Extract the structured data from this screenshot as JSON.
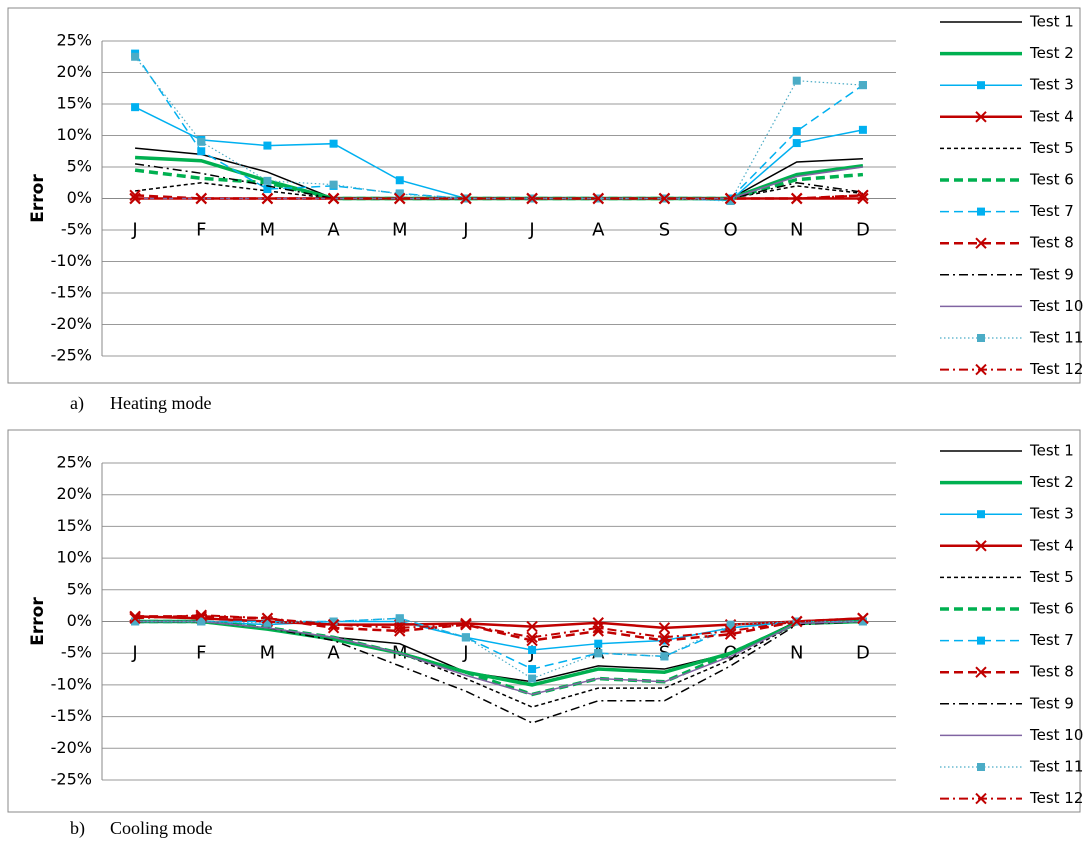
{
  "chart_data": [
    {
      "type": "line",
      "y_label": "Error",
      "caption_marker": "a)",
      "caption": "Heating mode",
      "categories": [
        "J",
        "F",
        "M",
        "A",
        "M",
        "J",
        "J",
        "A",
        "S",
        "O",
        "N",
        "D"
      ],
      "ylim": [
        -25,
        25
      ],
      "grid": true,
      "yticks": [
        {
          "value": 25,
          "label": "25%"
        },
        {
          "value": 20,
          "label": "20%"
        },
        {
          "value": 15,
          "label": "15%"
        },
        {
          "value": 10,
          "label": "10%"
        },
        {
          "value": 5,
          "label": "5%"
        },
        {
          "value": 0,
          "label": "0%"
        },
        {
          "value": -5,
          "label": "-5%"
        },
        {
          "value": -10,
          "label": "-10%"
        },
        {
          "value": -15,
          "label": "-15%"
        },
        {
          "value": -20,
          "label": "-20%"
        },
        {
          "value": -25,
          "label": "-25%"
        }
      ],
      "series": [
        {
          "name": "Test 1",
          "color": "#000000",
          "width": 1.5,
          "dash": "solid",
          "marker": "none",
          "values": [
            8,
            7,
            4.2,
            0,
            0,
            0,
            0,
            0,
            0,
            0,
            5.8,
            6.3
          ]
        },
        {
          "name": "Test 2",
          "color": "#00b050",
          "width": 3.5,
          "dash": "solid",
          "marker": "none",
          "values": [
            6.5,
            6,
            2.8,
            0,
            0,
            0,
            0,
            0,
            0,
            0,
            3.8,
            5.2
          ]
        },
        {
          "name": "Test 3",
          "color": "#00b0f0",
          "width": 1.5,
          "dash": "solid",
          "marker": "square",
          "values": [
            14.5,
            9.3,
            8.4,
            8.7,
            2.9,
            0,
            0,
            0,
            0,
            -0.3,
            8.8,
            10.9
          ]
        },
        {
          "name": "Test 4",
          "color": "#c00000",
          "width": 2.5,
          "dash": "solid",
          "marker": "x",
          "values": [
            0,
            0,
            0,
            0,
            0,
            0,
            0,
            0,
            0,
            0,
            0,
            0
          ]
        },
        {
          "name": "Test 5",
          "color": "#000000",
          "width": 1.5,
          "dash": "dash",
          "marker": "none",
          "values": [
            1.2,
            2.5,
            1.2,
            0,
            0,
            0,
            0,
            0,
            0,
            0,
            2,
            0.8
          ]
        },
        {
          "name": "Test 6",
          "color": "#00b050",
          "width": 3.5,
          "dash": "longdash",
          "marker": "none",
          "values": [
            4.5,
            3.2,
            2.5,
            0,
            0,
            0,
            0,
            0,
            0,
            0,
            3,
            3.8
          ]
        },
        {
          "name": "Test 7",
          "color": "#00b0f0",
          "width": 1.5,
          "dash": "longdash",
          "marker": "square",
          "values": [
            23,
            7.5,
            1.5,
            2,
            0.8,
            0,
            0,
            0,
            0,
            0,
            10.7,
            18
          ]
        },
        {
          "name": "Test 8",
          "color": "#c00000",
          "width": 2.5,
          "dash": "longdash",
          "marker": "x",
          "values": [
            0.5,
            0,
            0,
            0,
            0,
            0,
            0,
            0,
            0,
            0,
            0,
            0.5
          ]
        },
        {
          "name": "Test 9",
          "color": "#000000",
          "width": 1.5,
          "dash": "dashdot",
          "marker": "none",
          "values": [
            5.5,
            4,
            2,
            0,
            0,
            0,
            0,
            0,
            0,
            0,
            2.5,
            1
          ]
        },
        {
          "name": "Test 10",
          "color": "#8064a2",
          "width": 1.5,
          "dash": "solid",
          "marker": "none",
          "values": [
            0,
            0,
            0,
            0,
            0,
            0,
            0,
            0,
            0,
            0,
            3.5,
            5
          ]
        },
        {
          "name": "Test 11",
          "color": "#4bacc6",
          "width": 1.2,
          "dash": "dot",
          "marker": "square",
          "values": [
            22.5,
            9,
            2.8,
            2.2,
            0.7,
            0,
            0,
            0,
            0,
            -0.4,
            18.7,
            18
          ]
        },
        {
          "name": "Test 12",
          "color": "#c00000",
          "width": 2,
          "dash": "dashdot",
          "marker": "x",
          "values": [
            0,
            0,
            0,
            0,
            0,
            0,
            0,
            0,
            0,
            0,
            0,
            0.5
          ]
        }
      ]
    },
    {
      "type": "line",
      "y_label": "Error",
      "caption_marker": "b)",
      "caption": "Cooling mode",
      "categories": [
        "J",
        "F",
        "M",
        "A",
        "M",
        "J",
        "J",
        "A",
        "S",
        "O",
        "N",
        "D"
      ],
      "ylim": [
        -25,
        25
      ],
      "grid": true,
      "yticks": [
        {
          "value": 25,
          "label": "25%"
        },
        {
          "value": 20,
          "label": "20%"
        },
        {
          "value": 15,
          "label": "15%"
        },
        {
          "value": 10,
          "label": "10%"
        },
        {
          "value": 5,
          "label": "5%"
        },
        {
          "value": 0,
          "label": "0%"
        },
        {
          "value": -5,
          "label": "-5%"
        },
        {
          "value": -10,
          "label": "-10%"
        },
        {
          "value": -15,
          "label": "-15%"
        },
        {
          "value": -20,
          "label": "-20%"
        },
        {
          "value": -25,
          "label": "-25%"
        }
      ],
      "series": [
        {
          "name": "Test 1",
          "color": "#000000",
          "width": 1.5,
          "dash": "solid",
          "marker": "none",
          "values": [
            0,
            0,
            -1.2,
            -2.5,
            -3.5,
            -8,
            -9.5,
            -7,
            -7.5,
            -5,
            0,
            0
          ]
        },
        {
          "name": "Test 2",
          "color": "#00b050",
          "width": 3.5,
          "dash": "solid",
          "marker": "none",
          "values": [
            0,
            0,
            -1.2,
            -2.8,
            -5,
            -8,
            -10,
            -7.5,
            -8,
            -5,
            -0.3,
            0
          ]
        },
        {
          "name": "Test 3",
          "color": "#00b0f0",
          "width": 1.5,
          "dash": "solid",
          "marker": "square",
          "values": [
            0,
            0,
            -0.5,
            0,
            0,
            -2.5,
            -4.5,
            -3.5,
            -3,
            -1,
            0,
            0
          ]
        },
        {
          "name": "Test 4",
          "color": "#c00000",
          "width": 2.5,
          "dash": "solid",
          "marker": "x",
          "values": [
            0.8,
            0.5,
            0,
            -0.5,
            -0.5,
            -0.3,
            -0.8,
            -0.2,
            -1,
            -0.5,
            0,
            0.5
          ]
        },
        {
          "name": "Test 5",
          "color": "#000000",
          "width": 1.5,
          "dash": "dash",
          "marker": "none",
          "values": [
            0,
            0,
            -1,
            -2.5,
            -5,
            -9,
            -13.5,
            -10.5,
            -10.5,
            -6,
            -0.3,
            0
          ]
        },
        {
          "name": "Test 6",
          "color": "#00b050",
          "width": 3.5,
          "dash": "longdash",
          "marker": "none",
          "values": [
            0,
            0,
            -1,
            -2.5,
            -5,
            -8,
            -11.5,
            -9,
            -9.5,
            -5,
            -0.3,
            0
          ]
        },
        {
          "name": "Test 7",
          "color": "#00b0f0",
          "width": 1.5,
          "dash": "longdash",
          "marker": "square",
          "values": [
            0,
            0,
            0,
            0,
            0.5,
            -2.5,
            -7.5,
            -5,
            -5.5,
            -1,
            0,
            0
          ]
        },
        {
          "name": "Test 8",
          "color": "#c00000",
          "width": 2.5,
          "dash": "longdash",
          "marker": "x",
          "values": [
            0.8,
            0.8,
            0.5,
            -1,
            -1.5,
            -0.5,
            -3,
            -1.5,
            -3,
            -2,
            0,
            0.5
          ]
        },
        {
          "name": "Test 9",
          "color": "#000000",
          "width": 1.5,
          "dash": "dashdot",
          "marker": "none",
          "values": [
            0,
            0,
            -1,
            -3,
            -7,
            -11,
            -16,
            -12.5,
            -12.5,
            -7,
            -0.5,
            0
          ]
        },
        {
          "name": "Test 10",
          "color": "#8064a2",
          "width": 1.5,
          "dash": "solid",
          "marker": "none",
          "values": [
            0,
            0,
            -1,
            -2.5,
            -5,
            -8.5,
            -11.5,
            -9,
            -9.5,
            -5.5,
            -0.3,
            0
          ]
        },
        {
          "name": "Test 11",
          "color": "#4bacc6",
          "width": 1.2,
          "dash": "dot",
          "marker": "square",
          "values": [
            0,
            0,
            -0.2,
            0,
            0.5,
            -2.5,
            -9,
            -5,
            -5.5,
            -0.5,
            0,
            0
          ]
        },
        {
          "name": "Test 12",
          "color": "#c00000",
          "width": 2,
          "dash": "dashdot",
          "marker": "x",
          "values": [
            0.5,
            1,
            0.5,
            -0.5,
            -1,
            -0.5,
            -2.5,
            -1,
            -2.5,
            -1.5,
            0,
            0.5
          ]
        }
      ]
    }
  ]
}
